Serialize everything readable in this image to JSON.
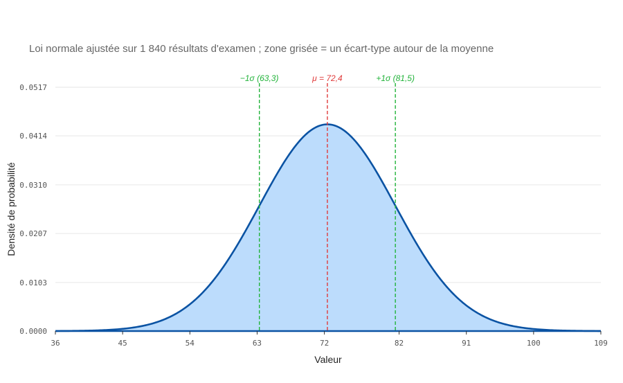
{
  "colors": {
    "curve": "#0b53a3",
    "fill": "#bcdcfc",
    "mean": "#e03c3c",
    "sigma": "#22b33a",
    "grid": "#e6e6e6",
    "axis": "#0b53a3"
  },
  "chart_data": {
    "type": "area",
    "title": "",
    "subtitle": "Loi normale ajustée sur 1 840 résultats d'examen ; zone grisée = un écart-type autour de la moyenne",
    "xlabel": "Valeur",
    "ylabel": "Densité de probabilité",
    "xlim": [
      36,
      109
    ],
    "ylim": [
      0,
      0.0517
    ],
    "x_ticks": [
      "36",
      "45",
      "54",
      "63",
      "72",
      "82",
      "91",
      "100",
      "109"
    ],
    "y_ticks": [
      "0.0000",
      "0.0103",
      "0.0207",
      "0.0310",
      "0.0414",
      "0.0517"
    ],
    "grid": true,
    "distribution": {
      "name": "Loi normale",
      "mean": 72.4,
      "sd": 9.1
    },
    "annotations": [
      {
        "label": "−1σ (63,3)",
        "x": 63.3,
        "kind": "sigma"
      },
      {
        "label": "μ = 72,4",
        "x": 72.4,
        "kind": "mean"
      },
      {
        "label": "+1σ (81,5)",
        "x": 81.5,
        "kind": "sigma"
      }
    ]
  }
}
